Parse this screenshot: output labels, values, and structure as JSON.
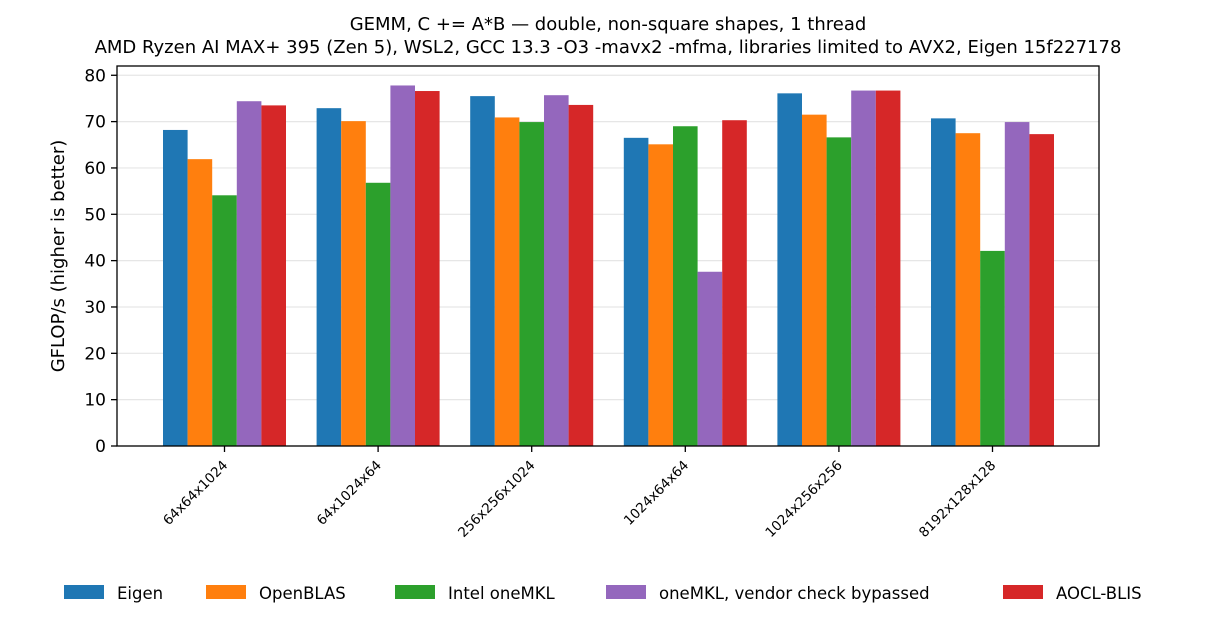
{
  "chart_data": {
    "type": "bar",
    "title": "GEMM, C += A*B — double, non-square shapes, 1 thread",
    "subtitle": "AMD Ryzen AI MAX+ 395 (Zen 5), WSL2, GCC 13.3 -O3 -mavx2 -mfma, libraries limited to AVX2, Eigen 15f227178",
    "xlabel": "",
    "ylabel": "GFLOP/s (higher is better)",
    "ylim": [
      0,
      82
    ],
    "yticks": [
      0,
      10,
      20,
      30,
      40,
      50,
      60,
      70,
      80
    ],
    "grid": "horizontal",
    "legend_position": "bottom",
    "categories": [
      "64x64x1024",
      "64x1024x64",
      "256x256x1024",
      "1024x64x64",
      "1024x256x256",
      "8192x128x128"
    ],
    "series": [
      {
        "name": "Eigen",
        "color": "#1f77b4",
        "values": [
          68.2,
          72.9,
          75.5,
          66.5,
          76.1,
          70.7
        ]
      },
      {
        "name": "OpenBLAS",
        "color": "#ff7f0e",
        "values": [
          61.9,
          70.1,
          70.9,
          65.1,
          71.5,
          67.5
        ]
      },
      {
        "name": "Intel oneMKL",
        "color": "#2ca02c",
        "values": [
          54.1,
          56.8,
          69.9,
          69.0,
          66.6,
          42.1
        ]
      },
      {
        "name": "oneMKL, vendor check bypassed",
        "color": "#9467bd",
        "values": [
          74.4,
          77.8,
          75.7,
          37.6,
          76.7,
          69.9
        ]
      },
      {
        "name": "AOCL-BLIS",
        "color": "#d62728",
        "values": [
          73.5,
          76.6,
          73.6,
          70.3,
          76.7,
          67.3
        ]
      }
    ]
  }
}
